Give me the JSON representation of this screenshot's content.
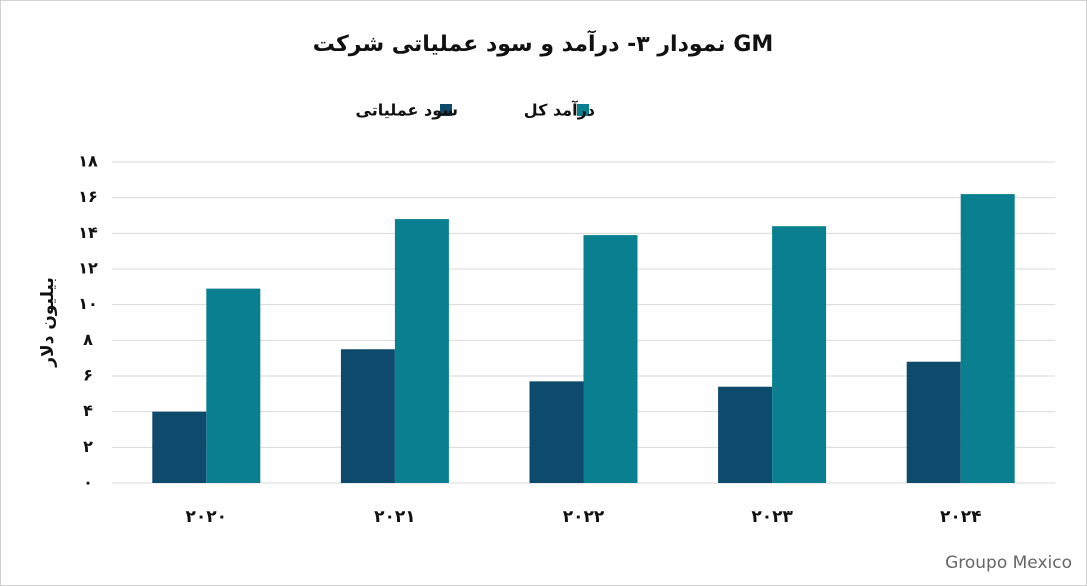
{
  "chart_data": {
    "type": "bar",
    "title": "نمودار ۳- درآمد و سود عملیاتی شرکت GM",
    "y_label": "بیلیون دلار",
    "source": "Groupo Mexico",
    "categories": [
      "۲۰۲۰",
      "۲۰۲۱",
      "۲۰۲۲",
      "۲۰۲۳",
      "۲۰۲۴"
    ],
    "series": [
      {
        "name": "سود عملیاتی",
        "color": "#0e4a6b",
        "values": [
          4.0,
          7.5,
          5.7,
          5.4,
          6.8
        ]
      },
      {
        "name": "درآمد کل",
        "color": "#0a7f8f",
        "values": [
          10.9,
          14.8,
          13.9,
          14.4,
          16.2
        ]
      }
    ],
    "ylim": [
      0,
      18
    ],
    "yticks": [
      {
        "value": 0,
        "label": "۰"
      },
      {
        "value": 2,
        "label": "۲"
      },
      {
        "value": 4,
        "label": "۴"
      },
      {
        "value": 6,
        "label": "۶"
      },
      {
        "value": 8,
        "label": "۸"
      },
      {
        "value": 10,
        "label": "۱۰"
      },
      {
        "value": 12,
        "label": "۱۲"
      },
      {
        "value": 14,
        "label": "۱۴"
      },
      {
        "value": 16,
        "label": "۱۶"
      },
      {
        "value": 18,
        "label": "۱۸"
      }
    ],
    "grid": true,
    "legend": "top"
  }
}
